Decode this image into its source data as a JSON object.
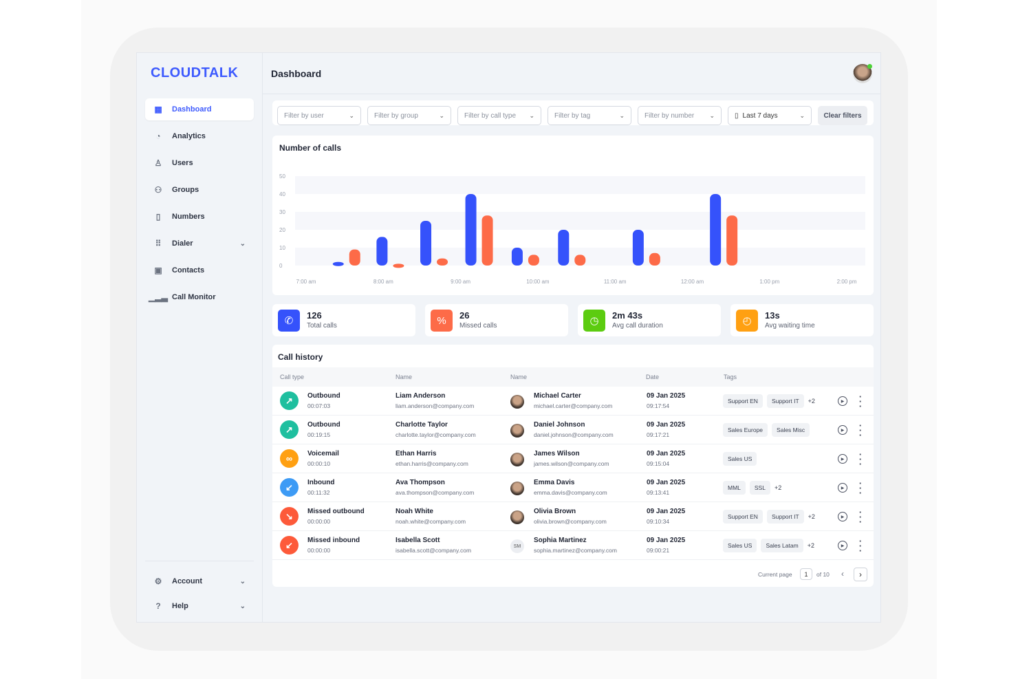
{
  "brand": {
    "logo": "CLOUDTALK"
  },
  "sidebar": {
    "items": [
      {
        "label": "Dashboard",
        "icon": "grid-icon",
        "active": true
      },
      {
        "label": "Analytics",
        "icon": "pie-chart-icon"
      },
      {
        "label": "Users",
        "icon": "user-icon"
      },
      {
        "label": "Groups",
        "icon": "users-icon"
      },
      {
        "label": "Numbers",
        "icon": "phone-file-icon"
      },
      {
        "label": "Dialer",
        "icon": "dialpad-icon",
        "expandable": true
      },
      {
        "label": "Contacts",
        "icon": "contact-book-icon"
      },
      {
        "label": "Call Monitor",
        "icon": "signal-bars-icon"
      }
    ],
    "bottom": [
      {
        "label": "Account",
        "icon": "gear-icon"
      },
      {
        "label": "Help",
        "icon": "help-icon"
      }
    ]
  },
  "header": {
    "title": "Dashboard"
  },
  "filters": {
    "user": "Filter by user",
    "group": "Filter by group",
    "call_type": "Filter by call type",
    "tag": "Filter by tag",
    "number": "Filter by number",
    "date": "Last 7 days",
    "clear": "Clear filters"
  },
  "chart_data": {
    "type": "bar",
    "title": "Number of calls",
    "yticks": [
      "50",
      "40",
      "30",
      "20",
      "10",
      "0"
    ],
    "ylim": [
      0,
      50
    ],
    "xticks": [
      "7:00 am",
      "8:00 am",
      "9:00 am",
      "10:00 am",
      "11:00 am",
      "12:00 am",
      "1:00 pm",
      "2:00 pm"
    ],
    "colors": [
      "#3552fb",
      "#fd6b48"
    ],
    "x": [
      "7:33",
      "8:07",
      "8:41",
      "9:16",
      "9:52",
      "10:28",
      "11:26",
      "12:26"
    ],
    "series": [
      {
        "values": [
          2,
          16,
          25,
          40,
          10,
          20,
          20,
          40
        ]
      },
      {
        "values": [
          9,
          1,
          4,
          28,
          6,
          6,
          7,
          28
        ]
      }
    ],
    "grid": "alternating bands",
    "legend": "none"
  },
  "stats": [
    {
      "value": "126",
      "label": "Total calls",
      "color": "#3552fb",
      "icon": "phone-outgoing-icon"
    },
    {
      "value": "26",
      "label": "Missed calls",
      "color": "#fd6b48",
      "icon": "missed-call-icon"
    },
    {
      "value": "2m 43s",
      "label": "Avg call duration",
      "color": "#5ccc10",
      "icon": "clock-icon"
    },
    {
      "value": "13s",
      "label": "Avg waiting time",
      "color": "#ffa012",
      "icon": "timer-icon"
    }
  ],
  "history": {
    "title": "Call history",
    "headers": [
      "Call type",
      "Name",
      "Name",
      "Date",
      "Tags"
    ],
    "rows": [
      {
        "type": "Outbound",
        "dur": "00:07:03",
        "color": "#1fbf9f",
        "glyph": "↗",
        "name": "Liam Anderson",
        "email": "liam.anderson@company.com",
        "agent": "Michael Carter",
        "agent_email": "michael.carter@company.com",
        "date": "09 Jan 2025",
        "time": "09:17:54",
        "tags": [
          "Support EN",
          "Support IT"
        ],
        "more": "+2"
      },
      {
        "type": "Outbound",
        "dur": "00:19:15",
        "color": "#1fbf9f",
        "glyph": "↗",
        "name": "Charlotte Taylor",
        "email": "charlotte.taylor@company.com",
        "agent": "Daniel Johnson",
        "agent_email": "daniel.johnson@company.com",
        "date": "09 Jan 2025",
        "time": "09:17:21",
        "tags": [
          "Sales Europe",
          "Sales Misc"
        ],
        "more": ""
      },
      {
        "type": "Voicemail",
        "dur": "00:00:10",
        "color": "#ffa012",
        "glyph": "∞",
        "name": "Ethan Harris",
        "email": "ethan.harris@company.com",
        "agent": "James Wilson",
        "agent_email": "james.wilson@company.com",
        "date": "09 Jan 2025",
        "time": "09:15:04",
        "tags": [
          "Sales US"
        ],
        "more": ""
      },
      {
        "type": "Inbound",
        "dur": "00:11:32",
        "color": "#3d9bf5",
        "glyph": "↙",
        "name": "Ava Thompson",
        "email": "ava.thompson@company.com",
        "agent": "Emma Davis",
        "agent_email": "emma.davis@company.com",
        "date": "09 Jan 2025",
        "time": "09:13:41",
        "tags": [
          "MML",
          "SSL"
        ],
        "more": "+2"
      },
      {
        "type": "Missed outbound",
        "dur": "00:00:00",
        "color": "#fd5a3a",
        "glyph": "↘",
        "name": "Noah White",
        "email": "noah.white@company.com",
        "agent": "Olivia Brown",
        "agent_email": "olivia.brown@company.com",
        "date": "09 Jan 2025",
        "time": "09:10:34",
        "tags": [
          "Support EN",
          "Support IT"
        ],
        "more": "+2"
      },
      {
        "type": "Missed inbound",
        "dur": "00:00:00",
        "color": "#fd5a3a",
        "glyph": "↙",
        "name": "Isabella Scott",
        "email": "isabella.scott@company.com",
        "agent": "Sophia Martinez",
        "agent_initials": "SM",
        "agent_email": "sophia.martinez@company.com",
        "date": "09 Jan 2025",
        "time": "09:00:21",
        "tags": [
          "Sales US",
          "Sales Latam"
        ],
        "more": "+2"
      }
    ]
  },
  "pagination": {
    "label": "Current page",
    "page": "1",
    "of": "of 10"
  }
}
